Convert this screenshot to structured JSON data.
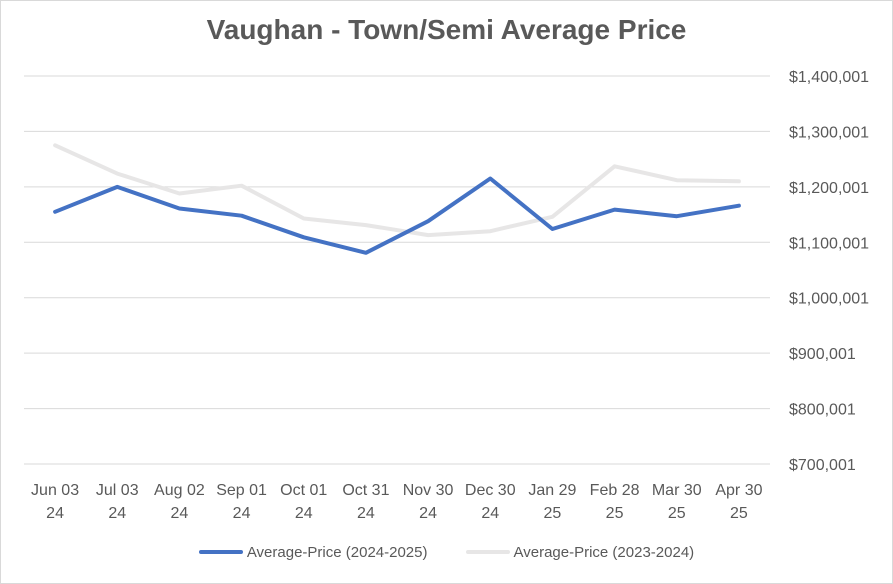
{
  "chart_data": {
    "type": "line",
    "title": "Vaughan - Town/Semi Average Price",
    "xlabel": "",
    "ylabel": "",
    "categories": [
      [
        "Jun 03",
        "24"
      ],
      [
        "Jul 03",
        "24"
      ],
      [
        "Aug 02",
        "24"
      ],
      [
        "Sep 01",
        "24"
      ],
      [
        "Oct 01",
        "24"
      ],
      [
        "Oct 31",
        "24"
      ],
      [
        "Nov 30",
        "24"
      ],
      [
        "Dec 30",
        "24"
      ],
      [
        "Jan 29",
        "25"
      ],
      [
        "Feb 28",
        "25"
      ],
      [
        "Mar 30",
        "25"
      ],
      [
        "Apr 30",
        "25"
      ]
    ],
    "y_ticks": [
      "$700,001",
      "$800,001",
      "$900,001",
      "$1,000,001",
      "$1,100,001",
      "$1,200,001",
      "$1,300,001",
      "$1,400,001"
    ],
    "ylim": [
      700001,
      1400001
    ],
    "y_axis_position": "right",
    "grid": true,
    "legend_position": "bottom",
    "series": [
      {
        "name": "Average-Price (2024-2025)",
        "color": "#4472c4",
        "values": [
          1155000,
          1200000,
          1161000,
          1148000,
          1109000,
          1081000,
          1138000,
          1215000,
          1124000,
          1159000,
          1147000,
          1166000
        ]
      },
      {
        "name": "Average-Price (2023-2024)",
        "color": "#e7e6e6",
        "values": [
          1275000,
          1224000,
          1188000,
          1202000,
          1143000,
          1131000,
          1113000,
          1120000,
          1146000,
          1237000,
          1212000,
          1210000
        ]
      }
    ]
  }
}
